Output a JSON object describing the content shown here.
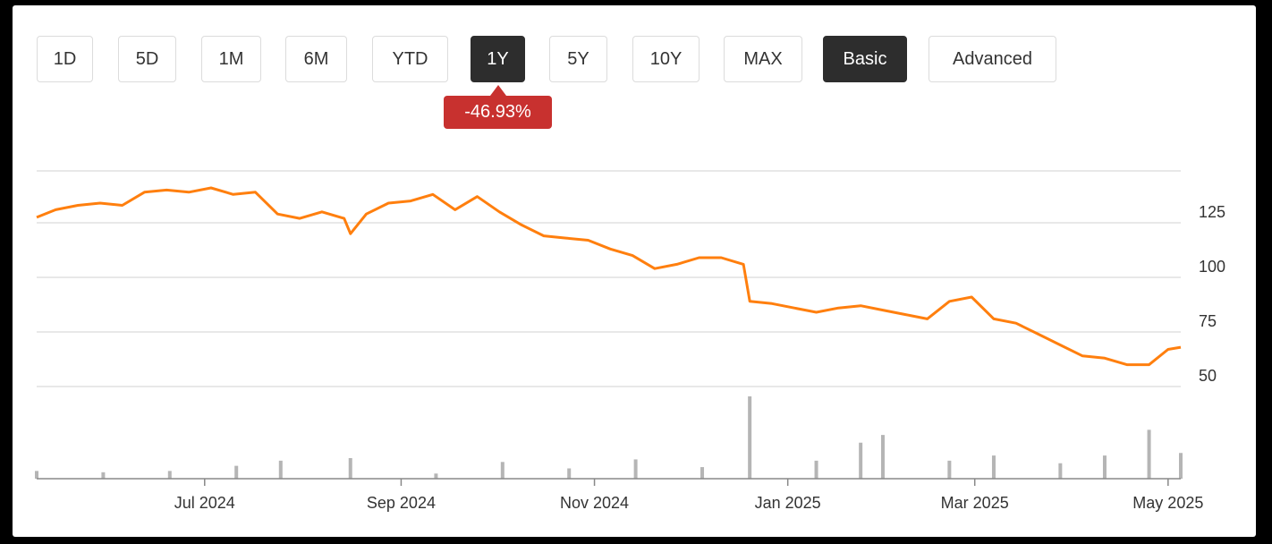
{
  "toolbar": {
    "ranges": [
      "1D",
      "5D",
      "1M",
      "6M",
      "YTD",
      "1Y",
      "5Y",
      "10Y",
      "MAX"
    ],
    "active_range": "1Y",
    "modes": [
      "Basic",
      "Advanced"
    ],
    "active_mode": "Basic"
  },
  "change_badge": {
    "label": "-46.93%",
    "color": "#c8312f"
  },
  "colors": {
    "line": "#ff7f0e",
    "volume": "#b5b5b5",
    "grid": "#d9d9d9",
    "active": "#2d2d2d"
  },
  "chart_data": {
    "type": "line",
    "title": "",
    "x_tick_labels": [
      "Jul 2024",
      "Sep 2024",
      "Nov 2024",
      "Jan 2025",
      "Mar 2025",
      "May 2025"
    ],
    "x_tick_dates": [
      "2024-07-01",
      "2024-09-01",
      "2024-11-01",
      "2025-01-01",
      "2025-03-01",
      "2025-05-01"
    ],
    "x_range": [
      "2024-05-09",
      "2025-05-05"
    ],
    "y_tick_labels": [
      "125",
      "100",
      "75",
      "50"
    ],
    "y_ticks": [
      125,
      100,
      75,
      50
    ],
    "ylim": [
      50,
      150
    ],
    "grid": "horizontal",
    "series": [
      {
        "values": [
          [
            "2024-05-09",
            127.5
          ],
          [
            "2024-05-15",
            131
          ],
          [
            "2024-05-22",
            133
          ],
          [
            "2024-05-29",
            134
          ],
          [
            "2024-06-05",
            133
          ],
          [
            "2024-06-12",
            139
          ],
          [
            "2024-06-19",
            140
          ],
          [
            "2024-06-26",
            139
          ],
          [
            "2024-07-03",
            141
          ],
          [
            "2024-07-10",
            138
          ],
          [
            "2024-07-17",
            139
          ],
          [
            "2024-07-24",
            129
          ],
          [
            "2024-07-31",
            127
          ],
          [
            "2024-08-07",
            130
          ],
          [
            "2024-08-14",
            127
          ],
          [
            "2024-08-16",
            120
          ],
          [
            "2024-08-21",
            129
          ],
          [
            "2024-08-28",
            134
          ],
          [
            "2024-09-04",
            135
          ],
          [
            "2024-09-11",
            138
          ],
          [
            "2024-09-18",
            131
          ],
          [
            "2024-09-25",
            137
          ],
          [
            "2024-10-02",
            130
          ],
          [
            "2024-10-09",
            124
          ],
          [
            "2024-10-16",
            119
          ],
          [
            "2024-10-23",
            118
          ],
          [
            "2024-10-30",
            117
          ],
          [
            "2024-11-06",
            113
          ],
          [
            "2024-11-13",
            110
          ],
          [
            "2024-11-20",
            104
          ],
          [
            "2024-11-27",
            106
          ],
          [
            "2024-12-04",
            109
          ],
          [
            "2024-12-11",
            109
          ],
          [
            "2024-12-18",
            106
          ],
          [
            "2024-12-20",
            89
          ],
          [
            "2024-12-27",
            88
          ],
          [
            "2025-01-03",
            86
          ],
          [
            "2025-01-10",
            84
          ],
          [
            "2025-01-17",
            86
          ],
          [
            "2025-01-24",
            87
          ],
          [
            "2025-01-31",
            85
          ],
          [
            "2025-02-07",
            83
          ],
          [
            "2025-02-14",
            81
          ],
          [
            "2025-02-21",
            89
          ],
          [
            "2025-02-28",
            91
          ],
          [
            "2025-03-07",
            81
          ],
          [
            "2025-03-14",
            79
          ],
          [
            "2025-03-21",
            74
          ],
          [
            "2025-03-28",
            69
          ],
          [
            "2025-04-04",
            64
          ],
          [
            "2025-04-11",
            63
          ],
          [
            "2025-04-18",
            60
          ],
          [
            "2025-04-25",
            60
          ],
          [
            "2025-05-01",
            67
          ],
          [
            "2025-05-05",
            68
          ]
        ]
      }
    ],
    "volume": {
      "values": [
        [
          "2024-05-09",
          6
        ],
        [
          "2024-05-30",
          5
        ],
        [
          "2024-06-20",
          6
        ],
        [
          "2024-07-11",
          10
        ],
        [
          "2024-07-25",
          14
        ],
        [
          "2024-08-16",
          16
        ],
        [
          "2024-09-12",
          4
        ],
        [
          "2024-10-03",
          13
        ],
        [
          "2024-10-24",
          8
        ],
        [
          "2024-11-14",
          15
        ],
        [
          "2024-12-05",
          9
        ],
        [
          "2024-12-20",
          64
        ],
        [
          "2025-01-10",
          14
        ],
        [
          "2025-01-24",
          28
        ],
        [
          "2025-01-31",
          34
        ],
        [
          "2025-02-21",
          14
        ],
        [
          "2025-03-07",
          18
        ],
        [
          "2025-03-28",
          12
        ],
        [
          "2025-04-11",
          18
        ],
        [
          "2025-04-25",
          38
        ],
        [
          "2025-05-05",
          20
        ]
      ]
    }
  }
}
